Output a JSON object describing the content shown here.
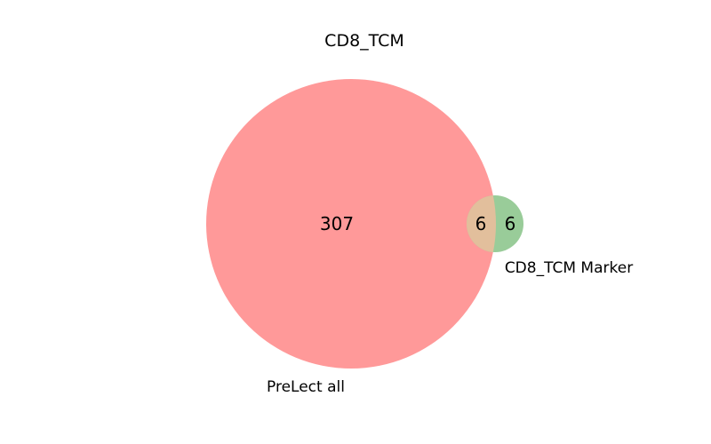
{
  "title": "CD8_TCM",
  "sets": {
    "a": {
      "label": "PreLect all",
      "color": "#ff9999"
    },
    "b": {
      "label": "CD8_TCM Marker",
      "color": "#99cc99"
    }
  },
  "intersection_color": "#e2bf9c",
  "counts": {
    "a_only": "307",
    "intersection": "6",
    "b_only": "6"
  }
}
